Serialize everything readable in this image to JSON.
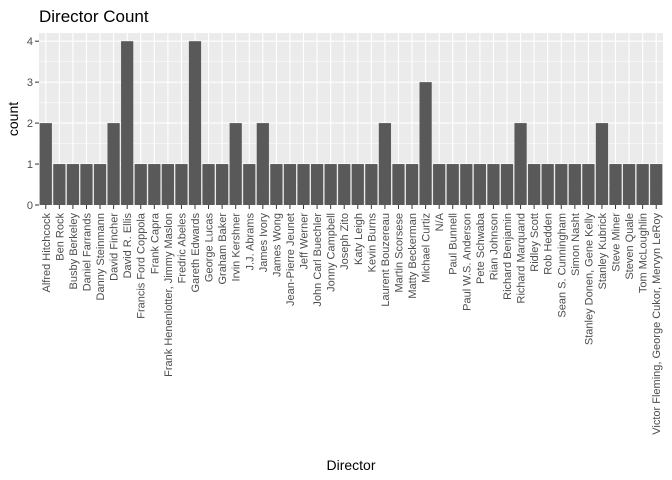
{
  "chart_data": {
    "type": "bar",
    "title": "Director Count",
    "xlabel": "Director",
    "ylabel": "count",
    "ylim": [
      0,
      4.2
    ],
    "yticks": [
      0,
      1,
      2,
      3,
      4
    ],
    "grid": true,
    "colors": {
      "panel": "#ebebeb",
      "grid": "#ffffff",
      "bar": "#595959",
      "tick": "#333333"
    },
    "categories": [
      "Alfred Hitchcock",
      "Ben Rock",
      "Busby Berkeley",
      "Daniel Farrands",
      "Danny Steinmann",
      "David Fincher",
      "David R. Ellis",
      "Francis Ford Coppola",
      "Frank Capra",
      "Frank Henenlotter, Jimmy Maslon",
      "Fredric Abeles",
      "Gareth Edwards",
      "George Lucas",
      "Graham Baker",
      "Irvin Kershner",
      "J.J. Abrams",
      "James Ivory",
      "James Wong",
      "Jean-Pierre Jeunet",
      "Jeff Werner",
      "John Carl Buechler",
      "Jonny Campbell",
      "Joseph Zito",
      "Katy Leigh",
      "Kevin Burns",
      "Laurent Bouzereau",
      "Martin Scorsese",
      "Matty Beckerman",
      "Michael Curtiz",
      "N/A",
      "Paul Bunnell",
      "Paul W.S. Anderson",
      "Pete Schwaba",
      "Rian Johnson",
      "Richard Benjamin",
      "Richard Marquand",
      "Ridley Scott",
      "Rob Hedden",
      "Sean S. Cunningham",
      "Simon Nasht",
      "Stanley Donen, Gene Kelly",
      "Stanley Kubrick",
      "Steve Miner",
      "Steven Quale",
      "Tom McLoughlin",
      "Victor Fleming, George Cukor, Mervyn LeRoy"
    ],
    "values": [
      2,
      1,
      1,
      1,
      1,
      2,
      4,
      1,
      1,
      1,
      1,
      4,
      1,
      1,
      2,
      1,
      2,
      1,
      1,
      1,
      1,
      1,
      1,
      1,
      1,
      2,
      1,
      1,
      3,
      1,
      1,
      1,
      1,
      1,
      1,
      2,
      1,
      1,
      1,
      1,
      1,
      2,
      1,
      1,
      1,
      1
    ]
  }
}
